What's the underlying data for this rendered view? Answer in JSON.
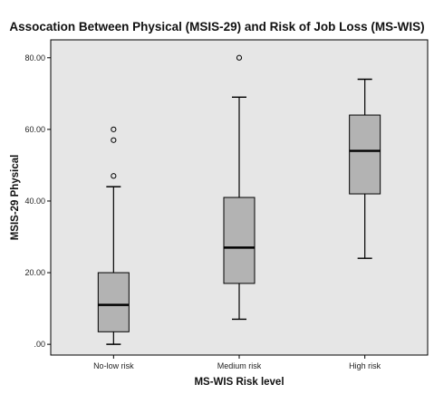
{
  "chart_data": {
    "type": "boxplot",
    "title": "Assocation Between Physical (MSIS-29) and Risk of Job Loss (MS-WIS)",
    "xlabel": "MS-WIS Risk level",
    "ylabel": "MSIS-29 Physical",
    "categories": [
      "No-low risk",
      "Medium risk",
      "High risk"
    ],
    "ylim": [
      -3,
      85
    ],
    "y_ticks": [
      0,
      20,
      40,
      60,
      80
    ],
    "y_tick_labels": [
      ".00",
      "20.00",
      "40.00",
      "60.00",
      "80.00"
    ],
    "boxes": [
      {
        "category": "No-low risk",
        "whisker_low": 0,
        "q1": 3.5,
        "median": 11,
        "q3": 20,
        "whisker_high": 44,
        "outliers": [
          47,
          57,
          60
        ]
      },
      {
        "category": "Medium risk",
        "whisker_low": 7,
        "q1": 17,
        "median": 27,
        "q3": 41,
        "whisker_high": 69,
        "outliers": [
          80
        ]
      },
      {
        "category": "High risk",
        "whisker_low": 24,
        "q1": 42,
        "median": 54,
        "q3": 64,
        "whisker_high": 74,
        "outliers": []
      }
    ],
    "grid": false,
    "colors": {
      "plot_background": "#e6e6e6",
      "box_fill": "#b3b3b3",
      "line": "#000000"
    }
  }
}
